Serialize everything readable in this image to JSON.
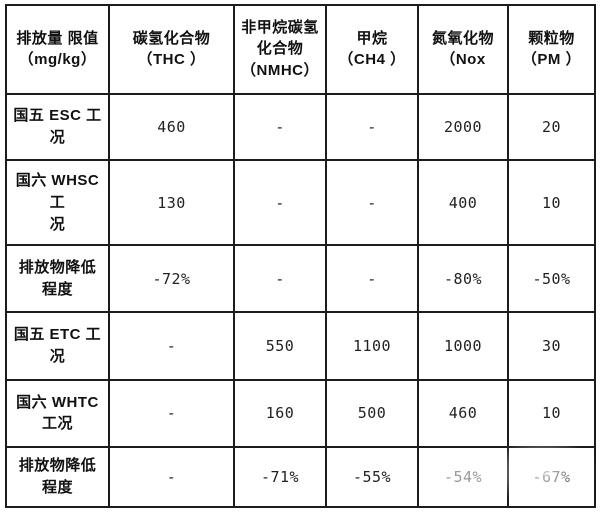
{
  "table": {
    "unit_note": "排放量 限值\n（mg/kg）",
    "headers": [
      "碳氢化合物\n（THC ）",
      "非甲烷碳氢\n化合物\n（NMHC）",
      "甲烷\n（CH4 ）",
      "氮氧化物\n（Nox",
      "颗粒物\n（PM ）"
    ],
    "rows": [
      {
        "label": "国五 ESC 工\n况",
        "values": [
          "460",
          "-",
          "-",
          "2000",
          "20"
        ]
      },
      {
        "label": "国六 WHSC\n工\n况",
        "values": [
          "130",
          "-",
          "-",
          "400",
          "10"
        ]
      },
      {
        "label": "排放物降低\n程度",
        "values": [
          "-72%",
          "-",
          "-",
          "-80%",
          "-50%"
        ]
      },
      {
        "label": "国五 ETC 工\n况",
        "values": [
          "-",
          "550",
          "1100",
          "1000",
          "30"
        ]
      },
      {
        "label": "国六 WHTC\n工况",
        "values": [
          "-",
          "160",
          "500",
          "460",
          "10"
        ]
      },
      {
        "label": "排放物降低\n程度",
        "values": [
          "-",
          "-71%",
          "-55%",
          "-54%",
          "-67%"
        ]
      }
    ]
  },
  "colors": {
    "border": "#1c1c1c",
    "text": "#111111",
    "muted_value": "#9a9a9a",
    "background": "#ffffff"
  }
}
